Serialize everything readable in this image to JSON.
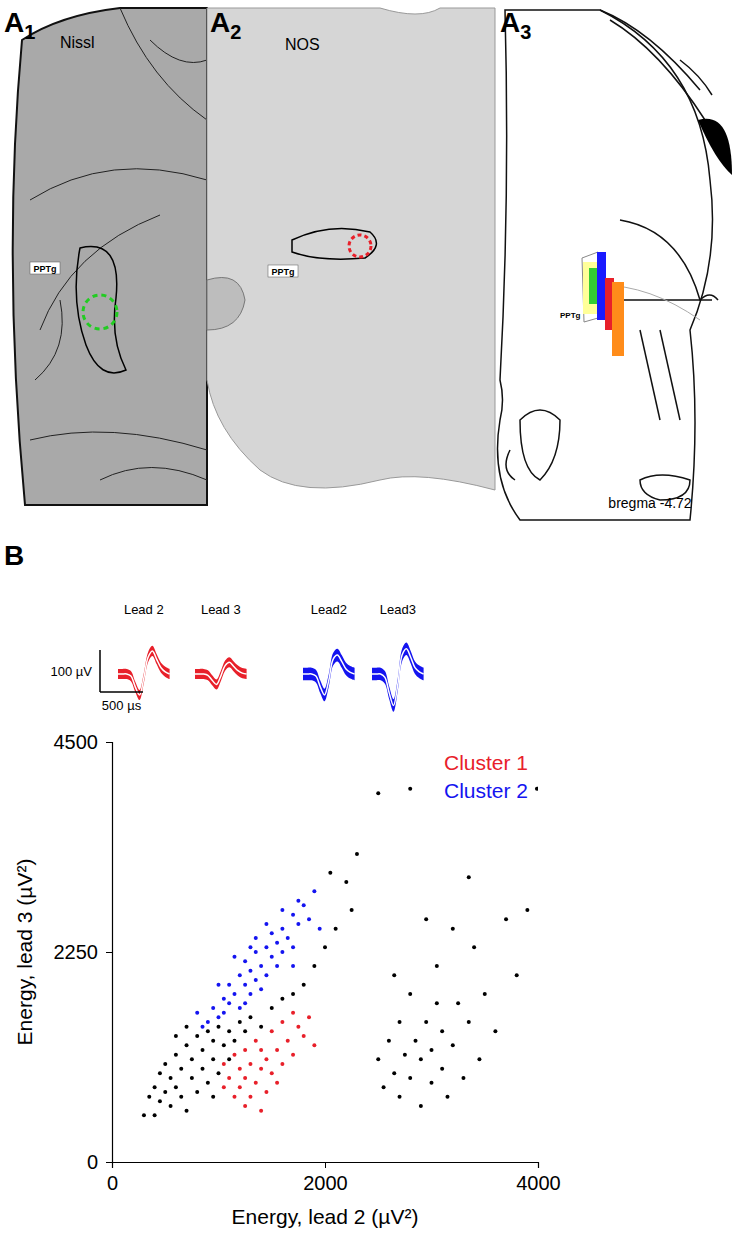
{
  "chart_data": {
    "type": "scatter",
    "xlabel": "Energy, lead 2 (µV²)",
    "ylabel": "Energy, lead 3 (µV²)",
    "xlim": [
      0,
      4000
    ],
    "ylim": [
      0,
      4500
    ],
    "xticks": [
      0,
      2000,
      4000
    ],
    "yticks": [
      0,
      2250,
      4500
    ],
    "legend": "upper right",
    "marker": "dot",
    "series": [
      {
        "name": "Cluster 2",
        "color": "#1414f0",
        "x": [
          900,
          950,
          1000,
          1050,
          1100,
          1100,
          1150,
          1200,
          1200,
          1250,
          1250,
          1300,
          1300,
          1350,
          1350,
          1400,
          1400,
          1450,
          1450,
          1500,
          1500,
          1550,
          1550,
          1600,
          1600,
          1650,
          1700,
          1700,
          1750,
          1800,
          1850,
          1900,
          1000,
          1150,
          1050,
          1250,
          1350,
          1450,
          1600,
          1750,
          1950,
          800,
          850,
          1700,
          1300
        ],
        "values": [
          1500,
          1650,
          1550,
          1750,
          1700,
          1900,
          1800,
          1650,
          2000,
          1900,
          2150,
          1800,
          2050,
          1950,
          2250,
          2100,
          1850,
          2300,
          2000,
          2200,
          2450,
          2100,
          2350,
          2500,
          2250,
          2400,
          2650,
          2300,
          2550,
          2750,
          2600,
          2900,
          1900,
          2200,
          1600,
          1700,
          2400,
          2550,
          2700,
          2800,
          2500,
          1600,
          1450,
          2100,
          2300
        ]
      },
      {
        "name": "Cluster 1",
        "color": "#e8202a",
        "x": [
          1050,
          1100,
          1150,
          1200,
          1200,
          1250,
          1250,
          1300,
          1300,
          1350,
          1350,
          1400,
          1400,
          1450,
          1450,
          1500,
          1500,
          1550,
          1600,
          1600,
          1650,
          1700,
          1750,
          1800,
          1850,
          1900,
          1250,
          1150,
          1400,
          1550,
          1050,
          1700
        ],
        "values": [
          1050,
          900,
          1150,
          800,
          1000,
          1200,
          900,
          700,
          1050,
          1300,
          850,
          1000,
          1200,
          750,
          1100,
          1400,
          950,
          1200,
          1500,
          1050,
          1300,
          1600,
          1450,
          1350,
          1550,
          1250,
          600,
          700,
          550,
          850,
          800,
          1150
        ]
      },
      {
        "name": null,
        "color": "#000000",
        "x": [
          350,
          400,
          400,
          450,
          450,
          500,
          500,
          550,
          550,
          600,
          600,
          650,
          650,
          700,
          700,
          750,
          750,
          800,
          800,
          850,
          850,
          900,
          900,
          950,
          950,
          1000,
          1000,
          1050,
          1100,
          1150,
          1200,
          1250,
          1300,
          1400,
          1500,
          1600,
          1700,
          1800,
          1900,
          2000,
          2100,
          2200,
          2300,
          2050,
          2250,
          700,
          600,
          300,
          1100,
          950,
          2800,
          3990,
          2500,
          2500,
          2550,
          2600,
          2650,
          2700,
          2700,
          2750,
          2800,
          2800,
          2850,
          2900,
          2900,
          2950,
          3000,
          3000,
          3050,
          3100,
          3100,
          3150,
          3200,
          3250,
          3300,
          3350,
          3400,
          3450,
          3500,
          3600,
          3700,
          3800,
          3900,
          2950,
          3200,
          3350,
          2650,
          3050
        ],
        "values": [
          700,
          500,
          800,
          650,
          950,
          750,
          1050,
          600,
          900,
          800,
          1150,
          700,
          1000,
          550,
          1250,
          900,
          1100,
          750,
          1350,
          1000,
          1200,
          850,
          1400,
          1100,
          1300,
          950,
          1450,
          1250,
          1400,
          1300,
          1500,
          1400,
          1550,
          1450,
          1650,
          1750,
          1800,
          1900,
          2100,
          2300,
          2500,
          3000,
          3300,
          3100,
          2700,
          1450,
          1350,
          500,
          1100,
          700,
          4000,
          4000,
          3950,
          1100,
          800,
          1300,
          950,
          1500,
          700,
          1150,
          1800,
          900,
          1300,
          600,
          1100,
          1500,
          850,
          1200,
          2100,
          1000,
          1400,
          700,
          1250,
          1700,
          900,
          1500,
          2300,
          1100,
          1800,
          1400,
          2600,
          2000,
          2700,
          2600,
          2500,
          3050,
          2000,
          1700
        ]
      }
    ]
  },
  "panels": [
    {
      "label": "A",
      "sub": "1",
      "stain": "Nissl",
      "region": "PPTg"
    },
    {
      "label": "A",
      "sub": "2",
      "stain": "NOS",
      "region": "PPTg"
    },
    {
      "label": "A",
      "sub": "3",
      "region": "PPTg",
      "caption": "bregma -4.72"
    }
  ],
  "panel_b": {
    "label": "B"
  },
  "waveforms": {
    "scale_bar": {
      "y_value": 100,
      "y_label": "100 µV",
      "x_value": 500,
      "x_label": "500 µs"
    },
    "traces": [
      {
        "lead": "Lead 2",
        "color": "#e8202a",
        "t": [
          0,
          50,
          100,
          150,
          200,
          250,
          300,
          350,
          400,
          450,
          500,
          550,
          600
        ],
        "values": [
          0,
          0,
          0,
          -5,
          -30,
          -50,
          -10,
          40,
          55,
          35,
          15,
          5,
          0
        ],
        "spread": 12
      },
      {
        "lead": "Lead 3",
        "color": "#e8202a",
        "t": [
          0,
          50,
          100,
          150,
          200,
          250,
          300,
          350,
          400,
          450,
          500,
          550,
          600
        ],
        "values": [
          0,
          0,
          0,
          -3,
          -15,
          -25,
          -5,
          20,
          28,
          18,
          8,
          2,
          0
        ],
        "spread": 12
      },
      {
        "lead": "Lead2",
        "color": "#1414f0",
        "t": [
          0,
          50,
          100,
          150,
          200,
          250,
          300,
          350,
          400,
          450,
          500,
          550,
          600
        ],
        "values": [
          0,
          0,
          0,
          -5,
          -30,
          -50,
          -15,
          35,
          45,
          30,
          12,
          4,
          0
        ],
        "spread": 15
      },
      {
        "lead": "Lead3",
        "color": "#1414f0",
        "t": [
          0,
          50,
          100,
          150,
          200,
          250,
          300,
          350,
          400,
          450,
          500,
          550,
          600
        ],
        "values": [
          0,
          0,
          0,
          -8,
          -45,
          -75,
          -25,
          45,
          60,
          40,
          15,
          5,
          0
        ],
        "spread": 15
      }
    ]
  }
}
